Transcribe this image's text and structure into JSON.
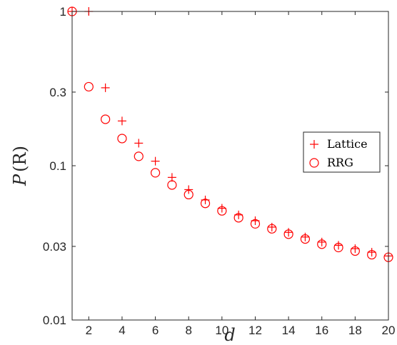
{
  "chart_data": {
    "type": "scatter",
    "title": "",
    "xlabel": "d",
    "ylabel_var": "P",
    "ylabel_arg": "(R)",
    "x_scale": "linear",
    "y_scale": "log",
    "xlim": [
      1,
      20
    ],
    "ylim": [
      0.01,
      1
    ],
    "x_ticks": [
      2,
      4,
      6,
      8,
      10,
      12,
      14,
      16,
      18,
      20
    ],
    "x_tick_labels": [
      "2",
      "4",
      "6",
      "8",
      "10",
      "12",
      "14",
      "16",
      "18",
      "20"
    ],
    "y_ticks": [
      0.01,
      0.03,
      0.1,
      0.3,
      1
    ],
    "y_tick_labels": [
      "0.01",
      "0.03",
      "0.1",
      "0.3",
      "1"
    ],
    "grid": false,
    "legend_position": "right",
    "series": [
      {
        "name": "Lattice",
        "marker": "plus",
        "color": "#ff0000",
        "x": [
          1,
          2,
          3,
          4,
          5,
          6,
          7,
          8,
          9,
          10,
          11,
          12,
          13,
          14,
          15,
          16,
          17,
          18,
          19,
          20
        ],
        "y": [
          1.0,
          1.0,
          0.32,
          0.195,
          0.14,
          0.107,
          0.084,
          0.07,
          0.06,
          0.053,
          0.048,
          0.044,
          0.04,
          0.037,
          0.0345,
          0.032,
          0.0305,
          0.029,
          0.0275,
          0.026
        ]
      },
      {
        "name": "RRG",
        "marker": "circle",
        "color": "#ff0000",
        "x": [
          1,
          2,
          3,
          4,
          5,
          6,
          7,
          8,
          9,
          10,
          11,
          12,
          13,
          14,
          15,
          16,
          17,
          18,
          19,
          20
        ],
        "y": [
          1.0,
          0.325,
          0.2,
          0.15,
          0.115,
          0.09,
          0.075,
          0.065,
          0.057,
          0.051,
          0.046,
          0.042,
          0.039,
          0.036,
          0.0335,
          0.031,
          0.0295,
          0.028,
          0.0265,
          0.0255
        ]
      }
    ]
  }
}
